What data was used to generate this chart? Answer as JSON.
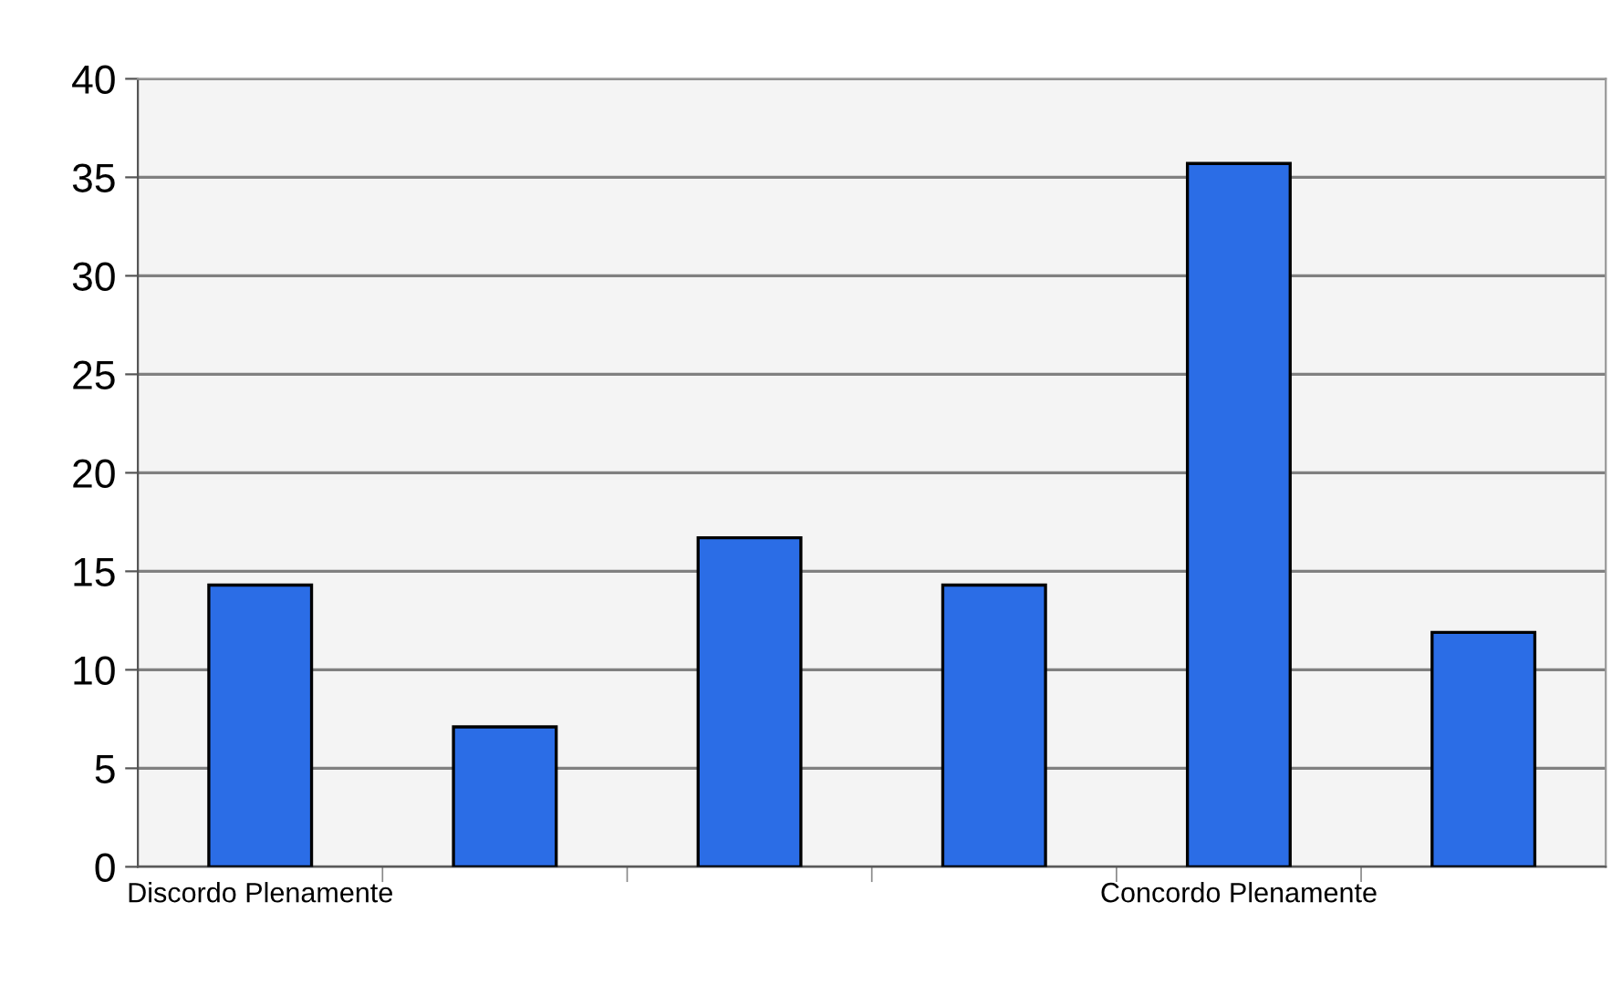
{
  "chart_data": {
    "type": "bar",
    "categories": [
      "Discordo Plenamente",
      null,
      null,
      null,
      "Concordo Plenamente",
      null
    ],
    "values": [
      14.3,
      7.1,
      16.7,
      14.3,
      35.7,
      11.9
    ],
    "color": "#2b6de6",
    "ylim": [
      0,
      40
    ],
    "yticks": [
      0,
      5,
      10,
      15,
      20,
      25,
      30,
      35,
      40
    ],
    "grid": "y"
  }
}
